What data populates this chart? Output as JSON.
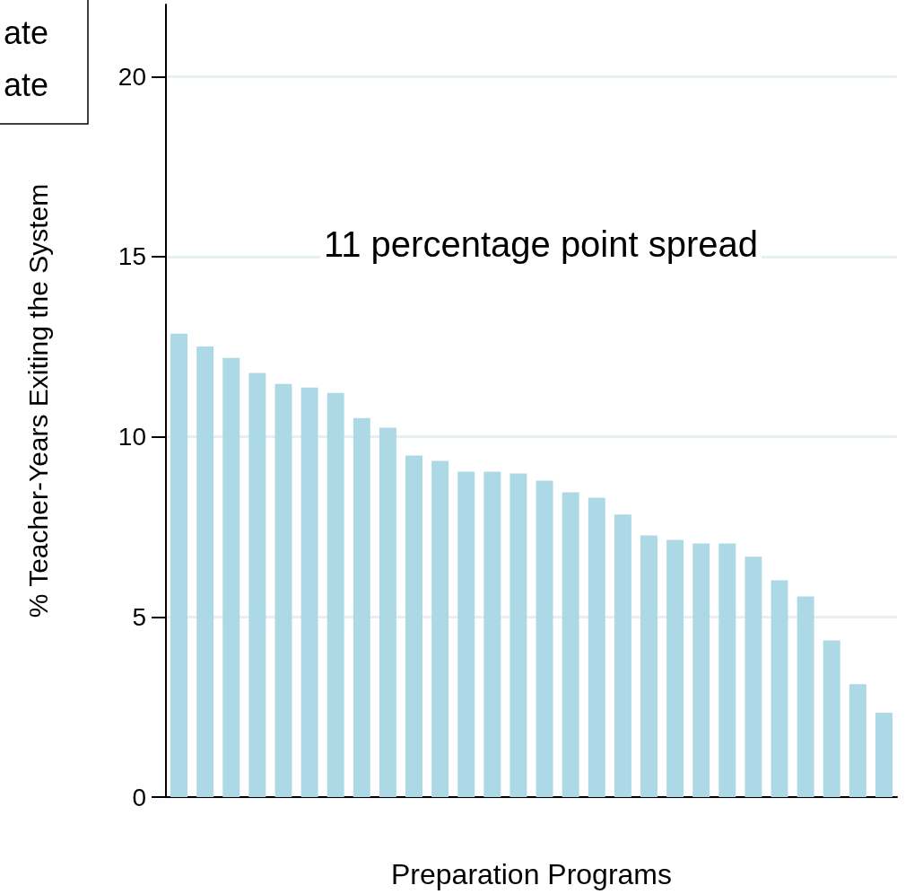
{
  "chart_data": {
    "type": "bar",
    "xlabel": "Preparation Programs",
    "ylabel": "% Teacher-Years Exiting the System",
    "categories": [
      null,
      null,
      null,
      null,
      null,
      null,
      null,
      null,
      null,
      null,
      null,
      null,
      null,
      null,
      null,
      null,
      null,
      null,
      null,
      null,
      null,
      null,
      null,
      null,
      null,
      null,
      null,
      null
    ],
    "values": [
      12.86,
      12.51,
      12.19,
      11.77,
      11.47,
      11.37,
      11.22,
      10.52,
      10.25,
      9.48,
      9.33,
      9.03,
      9.03,
      8.98,
      8.78,
      8.46,
      8.31,
      7.84,
      7.26,
      7.14,
      7.04,
      7.04,
      6.67,
      6.02,
      5.57,
      4.35,
      3.13,
      2.34
    ],
    "color": "#add8e6",
    "ylim": [
      0,
      22
    ],
    "yticks": [
      0,
      5,
      10,
      15,
      20
    ],
    "grid": "y",
    "annotations": [
      "11 percentage point spread",
      "ate",
      "ate"
    ]
  }
}
